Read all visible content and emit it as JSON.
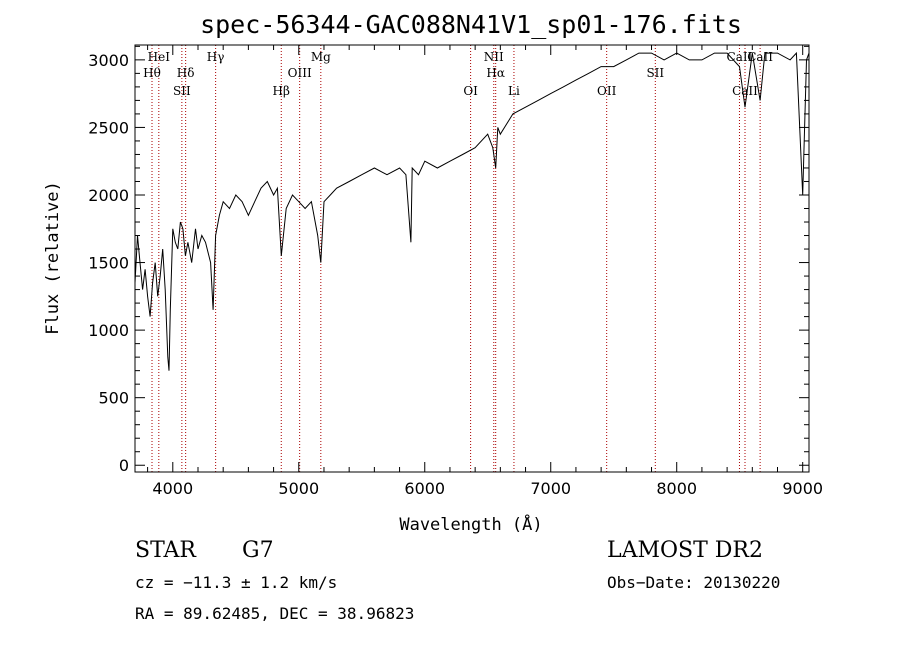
{
  "chart_data": {
    "type": "line",
    "title": "spec-56344-GAC088N41V1_sp01-176.fits",
    "xlabel": "Wavelength (Å)",
    "ylabel": "Flux (relative)",
    "xlim": [
      3700,
      9050
    ],
    "ylim": [
      -50,
      3110
    ],
    "xticks": [
      4000,
      5000,
      6000,
      7000,
      8000,
      9000
    ],
    "yticks": [
      0,
      500,
      1000,
      1500,
      2000,
      2500,
      3000
    ],
    "grid": false,
    "line_color": "#000000",
    "marker_color": "#aa0000",
    "series": [
      {
        "x": [
          3700,
          3720,
          3740,
          3760,
          3780,
          3800,
          3820,
          3840,
          3860,
          3880,
          3900,
          3920,
          3940,
          3960,
          3970,
          3980,
          4000,
          4020,
          4040,
          4060,
          4080,
          4100,
          4120,
          4150,
          4180,
          4200,
          4230,
          4260,
          4300,
          4320,
          4340,
          4370,
          4400,
          4450,
          4500,
          4550,
          4600,
          4650,
          4700,
          4750,
          4800,
          4830,
          4861,
          4900,
          4950,
          5000,
          5050,
          5100,
          5150,
          5175,
          5200,
          5250,
          5300,
          5400,
          5500,
          5600,
          5700,
          5800,
          5850,
          5890,
          5900,
          5950,
          6000,
          6100,
          6200,
          6300,
          6400,
          6500,
          6540,
          6563,
          6580,
          6600,
          6700,
          6800,
          6900,
          7000,
          7100,
          7200,
          7300,
          7400,
          7500,
          7600,
          7700,
          7800,
          7900,
          8000,
          8100,
          8200,
          8300,
          8400,
          8498,
          8542,
          8600,
          8662,
          8700,
          8800,
          8900,
          8950,
          9000,
          9030,
          9050
        ],
        "values": [
          1350,
          1700,
          1500,
          1300,
          1450,
          1250,
          1100,
          1350,
          1500,
          1250,
          1400,
          1600,
          1300,
          800,
          700,
          1150,
          1750,
          1650,
          1600,
          1800,
          1750,
          1550,
          1650,
          1500,
          1750,
          1600,
          1700,
          1650,
          1500,
          1150,
          1700,
          1850,
          1950,
          1900,
          2000,
          1950,
          1850,
          1950,
          2050,
          2100,
          2000,
          2050,
          1550,
          1900,
          2000,
          1950,
          1900,
          1950,
          1700,
          1500,
          1950,
          2000,
          2050,
          2100,
          2150,
          2200,
          2150,
          2200,
          2150,
          1650,
          2200,
          2150,
          2250,
          2200,
          2250,
          2300,
          2350,
          2450,
          2350,
          2200,
          2500,
          2450,
          2600,
          2650,
          2700,
          2750,
          2800,
          2850,
          2900,
          2950,
          2950,
          3000,
          3050,
          3050,
          3000,
          3050,
          3000,
          3000,
          3050,
          3050,
          2950,
          2650,
          3050,
          2700,
          3050,
          3050,
          3000,
          3050,
          2000,
          3000,
          3050
        ]
      }
    ],
    "lines": [
      {
        "x": 3835,
        "label": "Hθ",
        "row": 2
      },
      {
        "x": 3889,
        "label": "HeI",
        "row": 1
      },
      {
        "x": 4072,
        "label": "SII",
        "row": 3
      },
      {
        "x": 4102,
        "label": "Hδ",
        "row": 2
      },
      {
        "x": 4340,
        "label": "Hγ",
        "row": 1
      },
      {
        "x": 4861,
        "label": "Hβ",
        "row": 3
      },
      {
        "x": 5007,
        "label": "OIII",
        "row": 2
      },
      {
        "x": 5175,
        "label": "Mg",
        "row": 1
      },
      {
        "x": 6364,
        "label": "OI",
        "row": 3
      },
      {
        "x": 6548,
        "label": "NII",
        "row": 1
      },
      {
        "x": 6563,
        "label": "Hα",
        "row": 2
      },
      {
        "x": 6708,
        "label": "Li",
        "row": 3
      },
      {
        "x": 7444,
        "label": "OII",
        "row": 3
      },
      {
        "x": 7830,
        "label": "SII",
        "row": 2
      },
      {
        "x": 8498,
        "label": "CaII",
        "row": 1
      },
      {
        "x": 8542,
        "label": "CaII",
        "row": 3
      },
      {
        "x": 8662,
        "label": "CaII",
        "row": 1
      }
    ]
  },
  "info": {
    "star_type": "STAR",
    "subclass": "G7",
    "survey": "LAMOST DR2",
    "cz": "cz = −11.3 ± 1.2 km/s",
    "obs_date": "Obs−Date: 20130220",
    "radec": "RA =  89.62485, DEC =  38.96823"
  }
}
